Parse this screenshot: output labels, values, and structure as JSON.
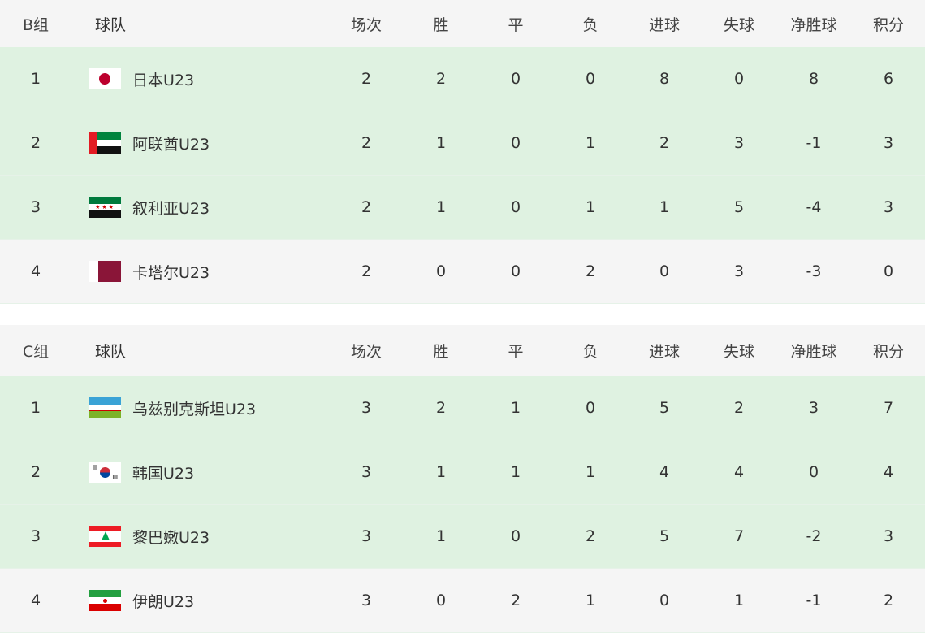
{
  "columns": [
    "球队",
    "场次",
    "胜",
    "平",
    "负",
    "进球",
    "失球",
    "净胜球",
    "积分"
  ],
  "groups": [
    {
      "label": "B组",
      "rows": [
        {
          "rank": "1",
          "flag": "japan-flag",
          "team": "日本U23",
          "stats": [
            "2",
            "2",
            "0",
            "0",
            "8",
            "0",
            "8",
            "6"
          ]
        },
        {
          "rank": "2",
          "flag": "uae-flag",
          "team": "阿联酋U23",
          "stats": [
            "2",
            "1",
            "0",
            "1",
            "2",
            "3",
            "-1",
            "3"
          ]
        },
        {
          "rank": "3",
          "flag": "syria-flag",
          "team": "叙利亚U23",
          "stats": [
            "2",
            "1",
            "0",
            "1",
            "1",
            "5",
            "-4",
            "3"
          ]
        },
        {
          "rank": "4",
          "flag": "qatar-flag",
          "team": "卡塔尔U23",
          "stats": [
            "2",
            "0",
            "0",
            "2",
            "0",
            "3",
            "-3",
            "0"
          ]
        }
      ]
    },
    {
      "label": "C组",
      "rows": [
        {
          "rank": "1",
          "flag": "uzbekistan-flag",
          "team": "乌兹别克斯坦U23",
          "stats": [
            "3",
            "2",
            "1",
            "0",
            "5",
            "2",
            "3",
            "7"
          ]
        },
        {
          "rank": "2",
          "flag": "korea-flag",
          "team": "韩国U23",
          "stats": [
            "3",
            "1",
            "1",
            "1",
            "4",
            "4",
            "0",
            "4"
          ]
        },
        {
          "rank": "3",
          "flag": "lebanon-flag",
          "team": "黎巴嫩U23",
          "stats": [
            "3",
            "1",
            "0",
            "2",
            "5",
            "7",
            "-2",
            "3"
          ]
        },
        {
          "rank": "4",
          "flag": "iran-flag",
          "team": "伊朗U23",
          "stats": [
            "3",
            "0",
            "2",
            "1",
            "0",
            "1",
            "-1",
            "2"
          ]
        }
      ]
    }
  ],
  "colors": {
    "qualified_row": "#dff2e1",
    "other_row": "#f5f5f5",
    "header": "#f5f5f5"
  }
}
